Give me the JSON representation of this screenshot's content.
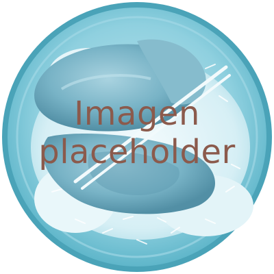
{
  "placeholder": {
    "line1": "Imagen",
    "line2": "placeholder"
  },
  "colors": {
    "plate_rim": "#5fb6ca",
    "plate_rim_dark": "#4aa3b8",
    "plate_inner": "#8ed1e0",
    "rice": "#e8f6f9",
    "chicken": "#6fa9bc",
    "chicken_dark": "#4f8ea4",
    "chopsticks": "#f2fafc",
    "text": "#8b5a4c"
  },
  "icon": "food-plate-photo"
}
